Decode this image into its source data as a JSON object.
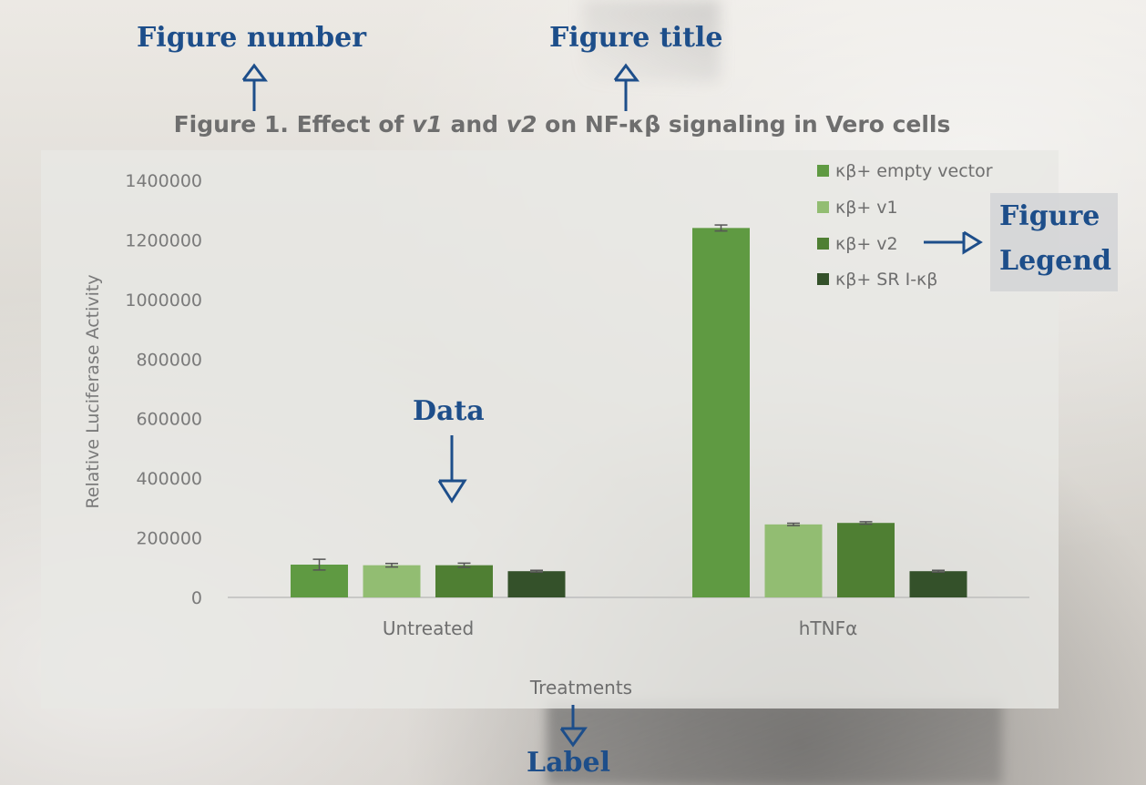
{
  "annotations": {
    "figure_number": "Figure number",
    "figure_title": "Figure title",
    "figure_legend_line1": "Figure",
    "figure_legend_line2": "Legend",
    "data": "Data",
    "label": "Label"
  },
  "figure": {
    "number": "Figure 1.",
    "title_parts": [
      "Effect of ",
      "v1",
      " and ",
      "v2",
      " on NF-κβ signaling in Vero cells"
    ]
  },
  "colors": {
    "empty_vector": "#5f9a42",
    "v1": "#92bd72",
    "v2": "#4f7f33",
    "sr": "#34512a",
    "annotation": "#1d4e8a",
    "axis_text": "#7a7a7a"
  },
  "chart_data": {
    "type": "bar",
    "categories": [
      "Untreated",
      "hTNFα"
    ],
    "series": [
      {
        "name": "κβ+ empty vector",
        "values": [
          110000,
          1240000
        ],
        "errors": [
          18000,
          10000
        ]
      },
      {
        "name": "κβ+ v1",
        "values": [
          108000,
          245000
        ],
        "errors": [
          6000,
          4000
        ]
      },
      {
        "name": "κβ+ v2",
        "values": [
          108000,
          250000
        ],
        "errors": [
          7000,
          4000
        ]
      },
      {
        "name": "κβ+ SR I-κβ",
        "values": [
          88000,
          88000
        ],
        "errors": [
          3000,
          3000
        ]
      }
    ],
    "ylabel": "Relative Luciferase Activity",
    "xlabel": "Treatments",
    "ylim": [
      0,
      1400000
    ],
    "yticks": [
      "0",
      "200000",
      "400000",
      "600000",
      "800000",
      "1000000",
      "1200000",
      "1400000"
    ],
    "legend": "top-right",
    "grid": false
  }
}
